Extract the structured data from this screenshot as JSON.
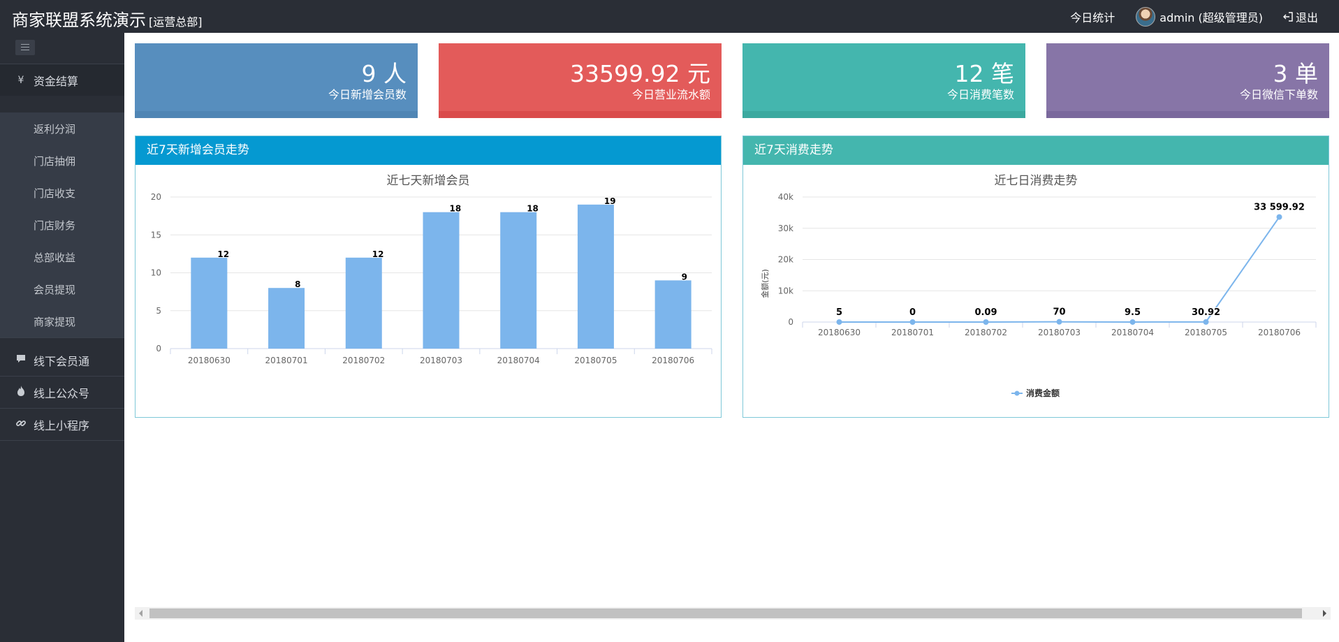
{
  "header": {
    "title": "商家联盟系统演示",
    "subtitle": "[运营总部]",
    "today_stats": "今日统计",
    "user": "admin (超级管理员)",
    "logout": "退出"
  },
  "sidebar": {
    "groups": [
      {
        "label": "资金结算",
        "icon": "yen-icon"
      },
      {
        "label": "线下会员通",
        "icon": "comment-icon"
      },
      {
        "label": "线上公众号",
        "icon": "flame-icon"
      },
      {
        "label": "线上小程序",
        "icon": "link-icon"
      }
    ],
    "subitems": [
      "返利分润",
      "门店抽佣",
      "门店收支",
      "门店财务",
      "总部收益",
      "会员提现",
      "商家提现"
    ]
  },
  "stats": [
    {
      "value": "9 人",
      "label": "今日新增会员数",
      "color": "#578ebe",
      "strip": "#4f85b4"
    },
    {
      "value": "33599.92 元",
      "label": "今日营业流水额",
      "color": "#e35b5a",
      "strip": "#da4b4b"
    },
    {
      "value": "12 笔",
      "label": "今日消费笔数",
      "color": "#44b6ae",
      "strip": "#3ba99f"
    },
    {
      "value": "3 单",
      "label": "今日微信下单数",
      "color": "#8775a7",
      "strip": "#7a689c"
    }
  ],
  "panels": {
    "left": {
      "title": "近7天新增会员走势",
      "color": "#0599d1"
    },
    "right": {
      "title": "近7天消费走势",
      "color": "#44b6ae"
    }
  },
  "chart_data": [
    {
      "type": "bar",
      "title": "近七天新增会员",
      "categories": [
        "20180630",
        "20180701",
        "20180702",
        "20180703",
        "20180704",
        "20180705",
        "20180706"
      ],
      "values": [
        12,
        8,
        12,
        18,
        18,
        19,
        9
      ],
      "data_labels": [
        "12",
        "8",
        "12",
        "18",
        "18",
        "19",
        "9"
      ],
      "ylim": [
        0,
        20
      ],
      "yticks": [
        "0",
        "5",
        "10",
        "15",
        "20"
      ],
      "bar_color": "#7cb5ec",
      "grid": true
    },
    {
      "type": "line",
      "title": "近七日消费走势",
      "ylabel": "金额(元)",
      "categories": [
        "20180630",
        "20180701",
        "20180702",
        "20180703",
        "20180704",
        "20180705",
        "20180706"
      ],
      "series": [
        {
          "name": "消费金额",
          "values": [
            5,
            0,
            0.09,
            70,
            9.5,
            30.92,
            33599.92
          ]
        }
      ],
      "data_labels": [
        "5",
        "0",
        "0.09",
        "70",
        "9.5",
        "30.92",
        "33 599.92"
      ],
      "ylim": [
        0,
        40000
      ],
      "yticks": [
        "0",
        "10k",
        "20k",
        "30k",
        "40k"
      ],
      "line_color": "#7cb5ec",
      "legend": "bottom-center",
      "grid": true
    }
  ]
}
